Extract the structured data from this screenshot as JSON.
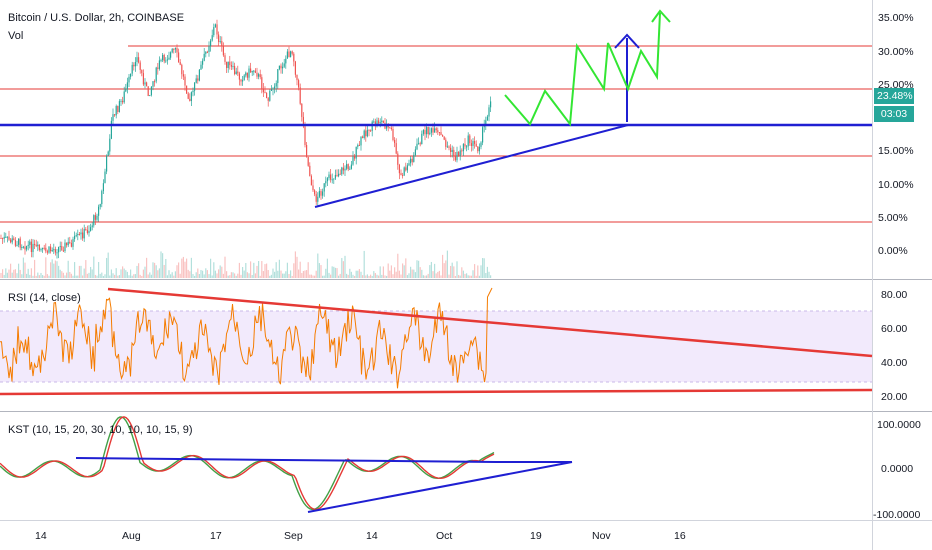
{
  "header": {
    "symbol_title": "Bitcoin / U.S. Dollar, 2h, COINBASE",
    "volume_label": "Vol"
  },
  "rsi_pane": {
    "label": "RSI (14, close)"
  },
  "kst_pane": {
    "label": "KST (10, 15, 20, 30, 10, 10, 10, 15, 9)"
  },
  "price_axis": {
    "ticks": [
      "35.00%",
      "30.00%",
      "25.00%",
      "20.00%",
      "15.00%",
      "10.00%",
      "5.00%",
      "0.00%"
    ],
    "current_value": "23.48%",
    "countdown": "03:03"
  },
  "rsi_axis": {
    "ticks": [
      "80.00",
      "60.00",
      "40.00",
      "20.00"
    ]
  },
  "kst_axis": {
    "ticks": [
      "100.0000",
      "0.0000",
      "-100.0000"
    ]
  },
  "time_axis": {
    "ticks": [
      "14",
      "Aug",
      "17",
      "Sep",
      "14",
      "Oct",
      "19",
      "Nov",
      "16"
    ]
  },
  "colors": {
    "candle_up": "#26a69a",
    "candle_down": "#ef5350",
    "trend_blue": "#1f1fd2",
    "resistance_red": "#e53935",
    "projection_green": "#33e633",
    "rsi_line": "#f57c00",
    "rsi_band": "#ede1fb",
    "badge_green": "#26a69a",
    "badge_dark": "#131722"
  }
}
